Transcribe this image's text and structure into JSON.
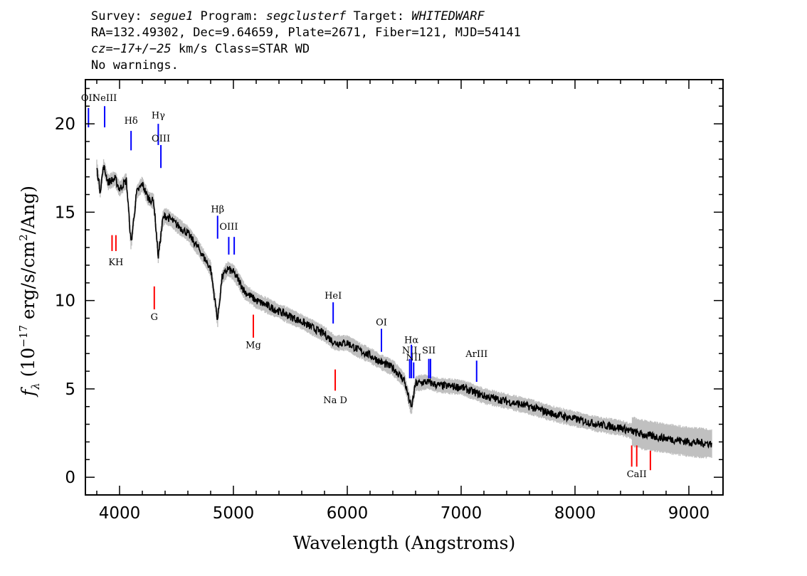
{
  "header": {
    "line1": {
      "survey_label": "Survey: ",
      "survey": "segue1",
      "program_label": " Program: ",
      "program": "segclusterf",
      "target_label": " Target: ",
      "target": "WHITEDWARF"
    },
    "line2": "RA=132.49302, Dec=9.64659, Plate=2671, Fiber=121, MJD=54141",
    "line3": {
      "cz": "cz=−17+/−25",
      "rest": " km/s Class=STAR WD"
    },
    "line4": "No warnings."
  },
  "chart_data": {
    "type": "line",
    "xlabel": "Wavelength (Angstroms)",
    "ylabel": "f_λ (10^-17 erg/s/cm^2/Ang)",
    "xlim": [
      3700,
      9300
    ],
    "ylim": [
      -1,
      22.5
    ],
    "x_ticks": [
      4000,
      5000,
      6000,
      7000,
      8000,
      9000
    ],
    "y_ticks": [
      0,
      5,
      10,
      15,
      20
    ],
    "grid": false,
    "legend": "none",
    "colors": {
      "flux": "#000000",
      "error_band": "#c0c0c0",
      "emission": "#0000ff",
      "absorption": "#ff0000"
    },
    "series": [
      {
        "role": "flux",
        "x": [
          3800,
          3830,
          3860,
          3900,
          3960,
          4000,
          4060,
          4101,
          4150,
          4200,
          4250,
          4300,
          4340,
          4380,
          4400,
          4450,
          4500,
          4600,
          4700,
          4800,
          4861,
          4900,
          4950,
          5000,
          5050,
          5100,
          5200,
          5400,
          5600,
          5800,
          5890,
          6000,
          6100,
          6200,
          6300,
          6400,
          6500,
          6563,
          6600,
          6700,
          6800,
          7000,
          7200,
          7400,
          7600,
          7800,
          8000,
          8200,
          8400,
          8600,
          8800,
          9000,
          9200
        ],
        "y": [
          17.5,
          16.2,
          17.6,
          16.7,
          16.9,
          16.3,
          16.8,
          13.2,
          16.1,
          16.6,
          15.8,
          15.6,
          12.5,
          14.6,
          14.8,
          14.6,
          14.3,
          13.8,
          12.9,
          11.8,
          8.9,
          11.3,
          11.8,
          11.6,
          11.1,
          10.5,
          10.0,
          9.4,
          8.8,
          8.1,
          7.6,
          7.6,
          7.2,
          6.9,
          6.5,
          6.2,
          5.5,
          3.9,
          5.3,
          5.4,
          5.2,
          5.1,
          4.6,
          4.3,
          4.0,
          3.6,
          3.3,
          3.0,
          2.8,
          2.4,
          2.2,
          2.0,
          1.9
        ]
      }
    ],
    "lines": [
      {
        "label": "OII",
        "x": 3727,
        "kind": "emission",
        "y": [
          19.8,
          20.9
        ],
        "label_y": 21.3
      },
      {
        "label": "NeIII",
        "x": 3869,
        "kind": "emission",
        "y": [
          19.8,
          21.0
        ],
        "label_y": 21.3
      },
      {
        "label": "Hδ",
        "x": 4101,
        "kind": "emission",
        "y": [
          18.5,
          19.6
        ],
        "label_y": 20.0
      },
      {
        "label": "Hγ",
        "x": 4340,
        "kind": "emission",
        "y": [
          18.8,
          20.0
        ],
        "label_y": 20.3
      },
      {
        "label": "OIII",
        "x": 4363,
        "kind": "emission",
        "y": [
          17.5,
          18.8
        ],
        "label_y": 19.0
      },
      {
        "label": "Hβ",
        "x": 4861,
        "kind": "emission",
        "y": [
          13.5,
          14.8
        ],
        "label_y": 15.0
      },
      {
        "label": "OIII",
        "x": 4959,
        "kind": "emission",
        "y": [
          12.6,
          13.6
        ],
        "label_y": 14.0
      },
      {
        "label": "",
        "x": 5007,
        "kind": "emission",
        "y": [
          12.6,
          13.6
        ],
        "label_y": null
      },
      {
        "label": "HeI",
        "x": 5876,
        "kind": "emission",
        "y": [
          8.7,
          9.9
        ],
        "label_y": 10.1
      },
      {
        "label": "OI",
        "x": 6300,
        "kind": "emission",
        "y": [
          7.1,
          8.4
        ],
        "label_y": 8.6
      },
      {
        "label": "NII",
        "x": 6548,
        "kind": "emission",
        "y": [
          5.6,
          6.7
        ],
        "label_y": 7.0
      },
      {
        "label": "Hα",
        "x": 6563,
        "kind": "emission",
        "y": [
          5.6,
          7.5
        ],
        "label_y": 7.6
      },
      {
        "label": "NII",
        "x": 6583,
        "kind": "emission",
        "y": [
          5.6,
          6.5
        ],
        "label_y": 6.6
      },
      {
        "label": "SII",
        "x": 6716,
        "kind": "emission",
        "y": [
          5.6,
          6.7
        ],
        "label_y": 7.0
      },
      {
        "label": "",
        "x": 6731,
        "kind": "emission",
        "y": [
          5.6,
          6.7
        ],
        "label_y": null
      },
      {
        "label": "ArIII",
        "x": 7136,
        "kind": "emission",
        "y": [
          5.4,
          6.6
        ],
        "label_y": 6.8
      },
      {
        "label": "KH",
        "x": 3968,
        "kind": "absorption",
        "y": [
          12.8,
          13.7
        ],
        "label_y": 12.0
      },
      {
        "label": "",
        "x": 3934,
        "kind": "absorption",
        "y": [
          12.8,
          13.7
        ],
        "label_y": null
      },
      {
        "label": "G",
        "x": 4305,
        "kind": "absorption",
        "y": [
          9.5,
          10.8
        ],
        "label_y": 8.9
      },
      {
        "label": "Mg",
        "x": 5175,
        "kind": "absorption",
        "y": [
          7.9,
          9.2
        ],
        "label_y": 7.3
      },
      {
        "label": "Na D",
        "x": 5894,
        "kind": "absorption",
        "y": [
          4.9,
          6.1
        ],
        "label_y": 4.2
      },
      {
        "label": "CaII",
        "x": 8542,
        "kind": "absorption",
        "y": [
          0.6,
          1.8
        ],
        "label_y": 0.0
      },
      {
        "label": "",
        "x": 8498,
        "kind": "absorption",
        "y": [
          0.6,
          1.8
        ],
        "label_y": null
      },
      {
        "label": "",
        "x": 8662,
        "kind": "absorption",
        "y": [
          0.4,
          1.5
        ],
        "label_y": null
      }
    ]
  }
}
